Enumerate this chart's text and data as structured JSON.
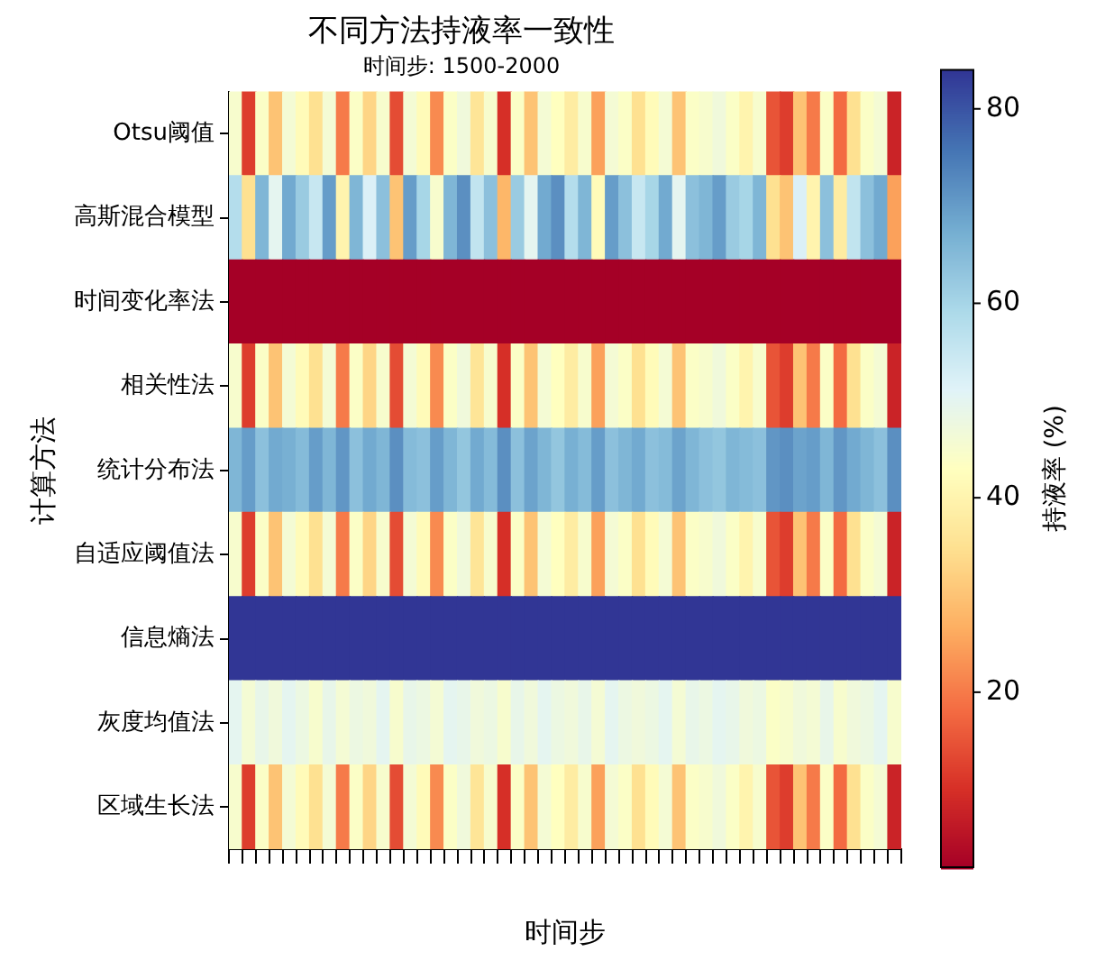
{
  "chart_data": {
    "type": "heatmap",
    "title": "不同方法持液率一致性",
    "subtitle": "时间步: 1500-2000",
    "xlabel": "时间步",
    "ylabel": "计算方法",
    "clabel": "持液率 (%)",
    "categories": [
      null,
      null,
      null,
      null,
      null,
      null,
      null,
      null,
      null,
      null,
      null,
      null,
      null,
      null,
      null,
      null,
      null,
      null,
      null,
      null,
      null,
      null,
      null,
      null,
      null,
      null,
      null,
      null,
      null,
      null,
      null,
      null,
      null,
      null,
      null,
      null,
      null,
      null,
      null,
      null,
      null,
      null,
      null,
      null,
      null,
      null,
      null,
      null,
      null,
      null
    ],
    "y_categories": [
      "Otsu阈值",
      "高斯混合模型",
      "时间变化率法",
      "相关性法",
      "统计分布法",
      "自适应阈值法",
      "信息熵法",
      "灰度均值法",
      "区域生长法"
    ],
    "cells": [
      [
        45,
        12,
        44,
        30,
        46,
        42,
        35,
        46,
        20,
        44,
        33,
        45,
        14,
        46,
        42,
        22,
        44,
        47,
        36,
        45,
        10,
        44,
        30,
        46,
        43,
        38,
        45,
        25,
        46,
        44,
        35,
        42,
        46,
        30,
        44,
        45,
        47,
        44,
        40,
        45,
        15,
        12,
        30,
        20,
        44,
        18,
        35,
        44,
        46,
        8
      ],
      [
        58,
        35,
        66,
        50,
        68,
        62,
        55,
        70,
        40,
        66,
        52,
        64,
        30,
        70,
        60,
        45,
        66,
        72,
        56,
        64,
        28,
        62,
        50,
        68,
        72,
        58,
        66,
        42,
        70,
        64,
        55,
        60,
        68,
        50,
        64,
        66,
        70,
        62,
        60,
        66,
        35,
        30,
        52,
        40,
        64,
        38,
        56,
        64,
        68,
        25
      ],
      [
        2,
        2,
        2,
        2,
        2,
        2,
        2,
        2,
        2,
        2,
        2,
        2,
        2,
        2,
        2,
        2,
        2,
        2,
        2,
        2,
        2,
        2,
        2,
        2,
        2,
        2,
        2,
        2,
        2,
        2,
        2,
        2,
        2,
        2,
        2,
        2,
        2,
        2,
        2,
        2,
        2,
        2,
        2,
        2,
        2,
        2,
        2,
        2,
        2,
        2
      ],
      [
        45,
        12,
        44,
        30,
        46,
        42,
        35,
        46,
        20,
        44,
        33,
        45,
        14,
        46,
        42,
        22,
        44,
        47,
        36,
        45,
        10,
        44,
        30,
        46,
        43,
        38,
        45,
        25,
        46,
        44,
        35,
        42,
        46,
        30,
        44,
        45,
        47,
        44,
        40,
        45,
        15,
        12,
        30,
        20,
        44,
        18,
        35,
        44,
        46,
        8
      ],
      [
        66,
        70,
        64,
        68,
        67,
        65,
        70,
        66,
        71,
        64,
        68,
        66,
        72,
        65,
        64,
        70,
        66,
        63,
        68,
        65,
        72,
        64,
        69,
        66,
        63,
        67,
        65,
        70,
        64,
        66,
        68,
        64,
        65,
        69,
        66,
        64,
        63,
        66,
        65,
        64,
        71,
        72,
        69,
        70,
        66,
        71,
        68,
        66,
        64,
        72
      ],
      [
        45,
        12,
        44,
        30,
        46,
        42,
        35,
        46,
        20,
        44,
        33,
        45,
        14,
        46,
        42,
        22,
        44,
        47,
        36,
        45,
        10,
        44,
        30,
        46,
        43,
        38,
        45,
        25,
        46,
        44,
        35,
        42,
        46,
        30,
        44,
        45,
        47,
        44,
        40,
        45,
        15,
        12,
        30,
        20,
        44,
        18,
        35,
        44,
        46,
        8
      ],
      [
        84,
        84,
        84,
        84,
        84,
        84,
        84,
        84,
        84,
        84,
        84,
        84,
        84,
        84,
        84,
        84,
        84,
        84,
        84,
        84,
        84,
        84,
        84,
        84,
        84,
        84,
        84,
        84,
        84,
        84,
        84,
        84,
        84,
        84,
        84,
        84,
        84,
        84,
        84,
        84,
        84,
        84,
        84,
        84,
        84,
        84,
        84,
        84,
        84,
        84
      ],
      [
        50,
        46,
        49,
        47,
        50,
        48,
        45,
        49,
        46,
        48,
        47,
        50,
        45,
        49,
        48,
        46,
        50,
        49,
        47,
        48,
        45,
        49,
        47,
        50,
        48,
        47,
        49,
        46,
        50,
        48,
        47,
        48,
        50,
        46,
        49,
        48,
        50,
        49,
        47,
        48,
        44,
        45,
        47,
        46,
        49,
        45,
        47,
        48,
        50,
        45
      ],
      [
        45,
        12,
        44,
        30,
        46,
        42,
        35,
        46,
        20,
        44,
        33,
        45,
        14,
        46,
        42,
        22,
        44,
        47,
        36,
        45,
        10,
        44,
        30,
        46,
        43,
        38,
        45,
        25,
        46,
        44,
        35,
        42,
        46,
        30,
        44,
        45,
        47,
        44,
        40,
        45,
        15,
        12,
        30,
        20,
        44,
        18,
        35,
        44,
        46,
        8
      ]
    ],
    "clim": [
      2,
      84
    ],
    "cticks": [
      20,
      40,
      60,
      80
    ],
    "tick_labels": "y"
  }
}
